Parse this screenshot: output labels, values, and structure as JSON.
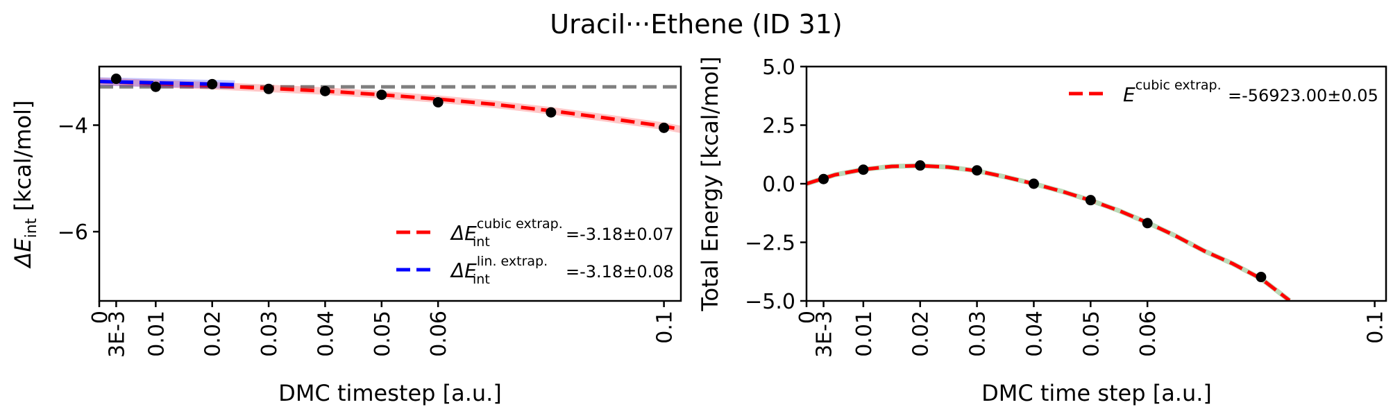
{
  "figure": {
    "suptitle": "Uracil···Ethene (ID 31)"
  },
  "colors": {
    "red": "#ff0000",
    "blue": "#0000ff",
    "gray": "#808080",
    "points": "#000000"
  },
  "chart_data": [
    {
      "type": "line",
      "xlabel": "DMC timestep [a.u.]",
      "ylabel_main": "ΔE",
      "ylabel_sub": "int",
      "ylabel_unit": "[kcal/mol]",
      "xlim": [
        0,
        0.103
      ],
      "ylim": [
        -7.3,
        -2.9
      ],
      "x_ticks": [
        0,
        0.003,
        0.01,
        0.02,
        0.03,
        0.04,
        0.05,
        0.06,
        0.1
      ],
      "x_tick_labels": [
        "0",
        "3E-3",
        "0.01",
        "0.02",
        "0.03",
        "0.04",
        "0.05",
        "0.06",
        "0.1"
      ],
      "y_ticks": [
        -4,
        -6
      ],
      "y_tick_labels": [
        "−4",
        "−6"
      ],
      "grid": false,
      "legend_position": "lower-right",
      "points": {
        "x": [
          0.003,
          0.01,
          0.02,
          0.03,
          0.04,
          0.05,
          0.06,
          0.08,
          0.1
        ],
        "y": [
          -3.13,
          -3.28,
          -3.23,
          -3.32,
          -3.36,
          -3.43,
          -3.57,
          -3.76,
          -4.05
        ]
      },
      "reference_line": {
        "y": -3.28,
        "color": "gray",
        "style": "dashed"
      },
      "series": [
        {
          "name_main": "ΔE",
          "name_sub": "int",
          "name_sup": "cubic extrap.",
          "value_text": "=-3.18±0.07",
          "color": "red",
          "style": "dashed",
          "x_range": [
            0,
            0.103
          ],
          "band": 0.07,
          "x": [
            0,
            0.01,
            0.02,
            0.03,
            0.04,
            0.05,
            0.06,
            0.07,
            0.08,
            0.09,
            0.1,
            0.103
          ],
          "y": [
            -3.18,
            -3.22,
            -3.26,
            -3.31,
            -3.36,
            -3.43,
            -3.51,
            -3.61,
            -3.73,
            -3.87,
            -4.02,
            -4.08
          ]
        },
        {
          "name_main": "ΔE",
          "name_sub": "int",
          "name_sup": "lin. extrap.",
          "value_text": "=-3.18±0.08",
          "color": "blue",
          "style": "dashed",
          "x_range": [
            0,
            0.024
          ],
          "band": 0.08,
          "x": [
            0,
            0.024
          ],
          "y": [
            -3.18,
            -3.24
          ]
        }
      ]
    },
    {
      "type": "line",
      "xlabel": "DMC time step [a.u.]",
      "ylabel": "Total Energy [kcal/mol]",
      "xlim": [
        0,
        0.102
      ],
      "ylim": [
        -5.0,
        5.0
      ],
      "x_ticks": [
        0,
        0.003,
        0.01,
        0.02,
        0.03,
        0.04,
        0.05,
        0.06,
        0.1
      ],
      "x_tick_labels": [
        "0",
        "3E-3",
        "0.01",
        "0.02",
        "0.03",
        "0.04",
        "0.05",
        "0.06",
        "0.1"
      ],
      "y_ticks": [
        5.0,
        2.5,
        0.0,
        -2.5,
        -5.0
      ],
      "y_tick_labels": [
        "5.0",
        "2.5",
        "0.0",
        "−2.5",
        "−5.0"
      ],
      "grid": false,
      "legend_position": "upper-right",
      "points": {
        "x": [
          0.003,
          0.01,
          0.02,
          0.03,
          0.04,
          0.05,
          0.06,
          0.08
        ],
        "y": [
          0.2,
          0.6,
          0.78,
          0.57,
          0.0,
          -0.7,
          -1.68,
          -3.98
        ]
      },
      "series": [
        {
          "name_main": "E",
          "name_sup": "cubic extrap.",
          "value_text": "=-56923.00±0.05",
          "color": "red",
          "style": "dashed",
          "x": [
            0,
            0.005,
            0.01,
            0.015,
            0.02,
            0.025,
            0.03,
            0.035,
            0.04,
            0.045,
            0.05,
            0.055,
            0.06,
            0.065,
            0.07,
            0.075,
            0.08,
            0.085
          ],
          "y": [
            0.0,
            0.38,
            0.61,
            0.74,
            0.77,
            0.71,
            0.55,
            0.29,
            0.0,
            -0.33,
            -0.71,
            -1.15,
            -1.66,
            -2.23,
            -2.87,
            -3.41,
            -4.05,
            -4.98
          ]
        }
      ]
    }
  ]
}
